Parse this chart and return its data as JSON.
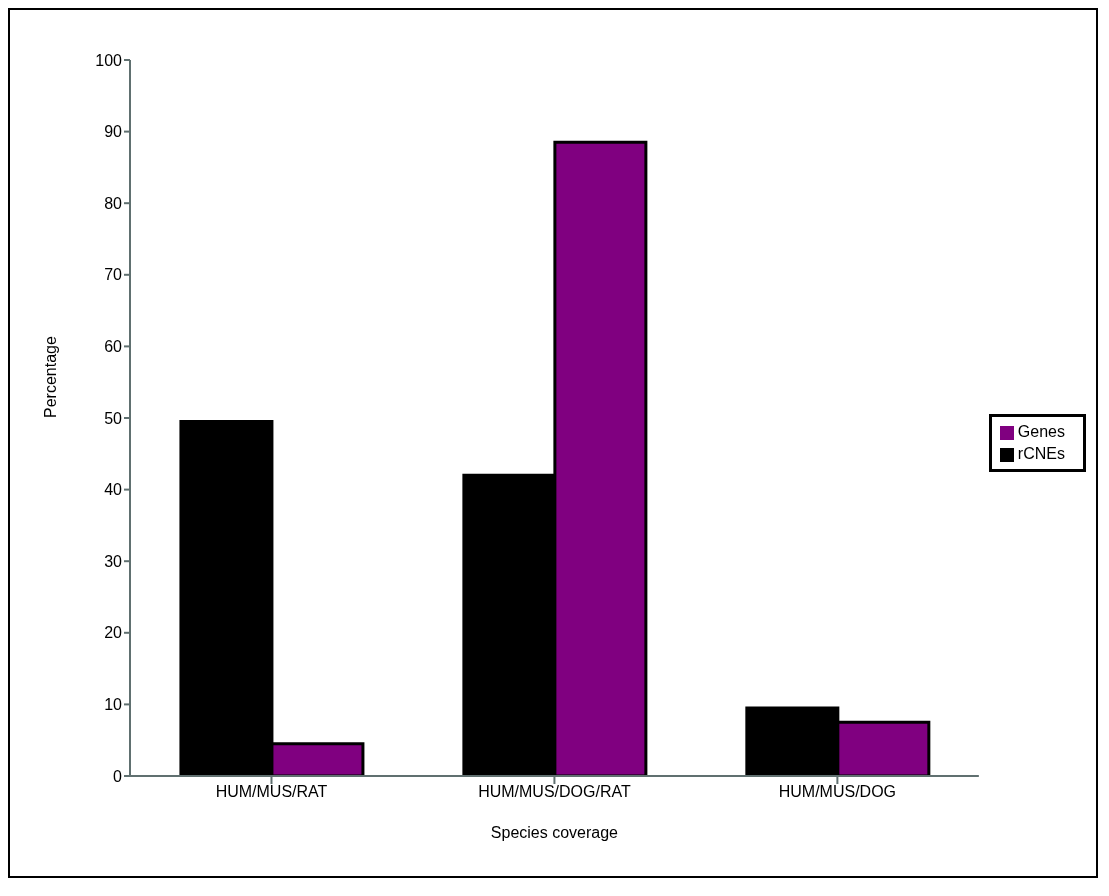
{
  "chart_data": {
    "type": "bar",
    "xlabel": "Species coverage",
    "ylabel": "Percentage",
    "categories": [
      "HUM/MUS/RAT",
      "HUM/MUS/DOG/RAT",
      "HUM/MUS/DOG"
    ],
    "series": [
      {
        "name": "rCNEs",
        "color": "#000000",
        "values": [
          49.5,
          42,
          9.5
        ]
      },
      {
        "name": "Genes",
        "color": "#800080",
        "values": [
          4.5,
          88.5,
          7.5
        ]
      }
    ],
    "ylim": [
      0,
      100
    ],
    "yticks": [
      0,
      10,
      20,
      30,
      40,
      50,
      60,
      70,
      80,
      90,
      100
    ],
    "grid": false,
    "legend": "right"
  }
}
